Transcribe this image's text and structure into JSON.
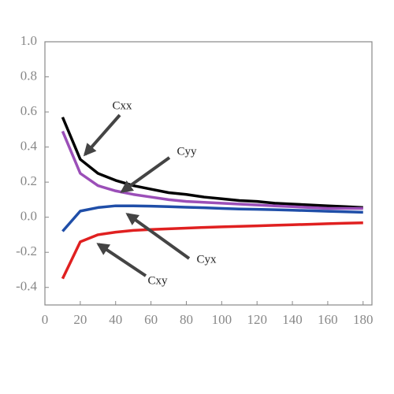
{
  "chart_data": {
    "type": "line",
    "x": [
      10,
      20,
      30,
      40,
      50,
      60,
      70,
      80,
      90,
      100,
      110,
      120,
      130,
      140,
      150,
      160,
      170,
      180
    ],
    "series": [
      {
        "name": "Cxx",
        "color": "#000000",
        "values": [
          0.57,
          0.33,
          0.25,
          0.21,
          0.18,
          0.16,
          0.14,
          0.13,
          0.115,
          0.105,
          0.095,
          0.09,
          0.08,
          0.075,
          0.07,
          0.065,
          0.06,
          0.055
        ]
      },
      {
        "name": "Cyy",
        "color": "#9b4fb8",
        "values": [
          0.49,
          0.25,
          0.18,
          0.15,
          0.13,
          0.115,
          0.1,
          0.09,
          0.085,
          0.08,
          0.075,
          0.07,
          0.065,
          0.06,
          0.055,
          0.05,
          0.05,
          0.05
        ]
      },
      {
        "name": "Cyx",
        "color": "#1f4ea8",
        "values": [
          -0.08,
          0.035,
          0.055,
          0.065,
          0.065,
          0.063,
          0.06,
          0.057,
          0.054,
          0.05,
          0.047,
          0.045,
          0.043,
          0.04,
          0.037,
          0.034,
          0.031,
          0.028
        ]
      },
      {
        "name": "Cxy",
        "color": "#e02020",
        "values": [
          -0.35,
          -0.14,
          -0.1,
          -0.085,
          -0.075,
          -0.07,
          -0.066,
          -0.062,
          -0.058,
          -0.055,
          -0.052,
          -0.049,
          -0.046,
          -0.043,
          -0.04,
          -0.037,
          -0.034,
          -0.032
        ]
      }
    ],
    "xlim": [
      0,
      185
    ],
    "ylim": [
      -0.5,
      1.0
    ],
    "xticks": [
      0,
      20,
      40,
      60,
      80,
      100,
      120,
      140,
      160,
      180
    ],
    "yticks": [
      -0.4,
      -0.2,
      {
        "value": 0,
        "label": "0.0"
      },
      0.2,
      0.4,
      0.6,
      0.8,
      {
        "value": 1,
        "label": "1.0"
      }
    ]
  }
}
